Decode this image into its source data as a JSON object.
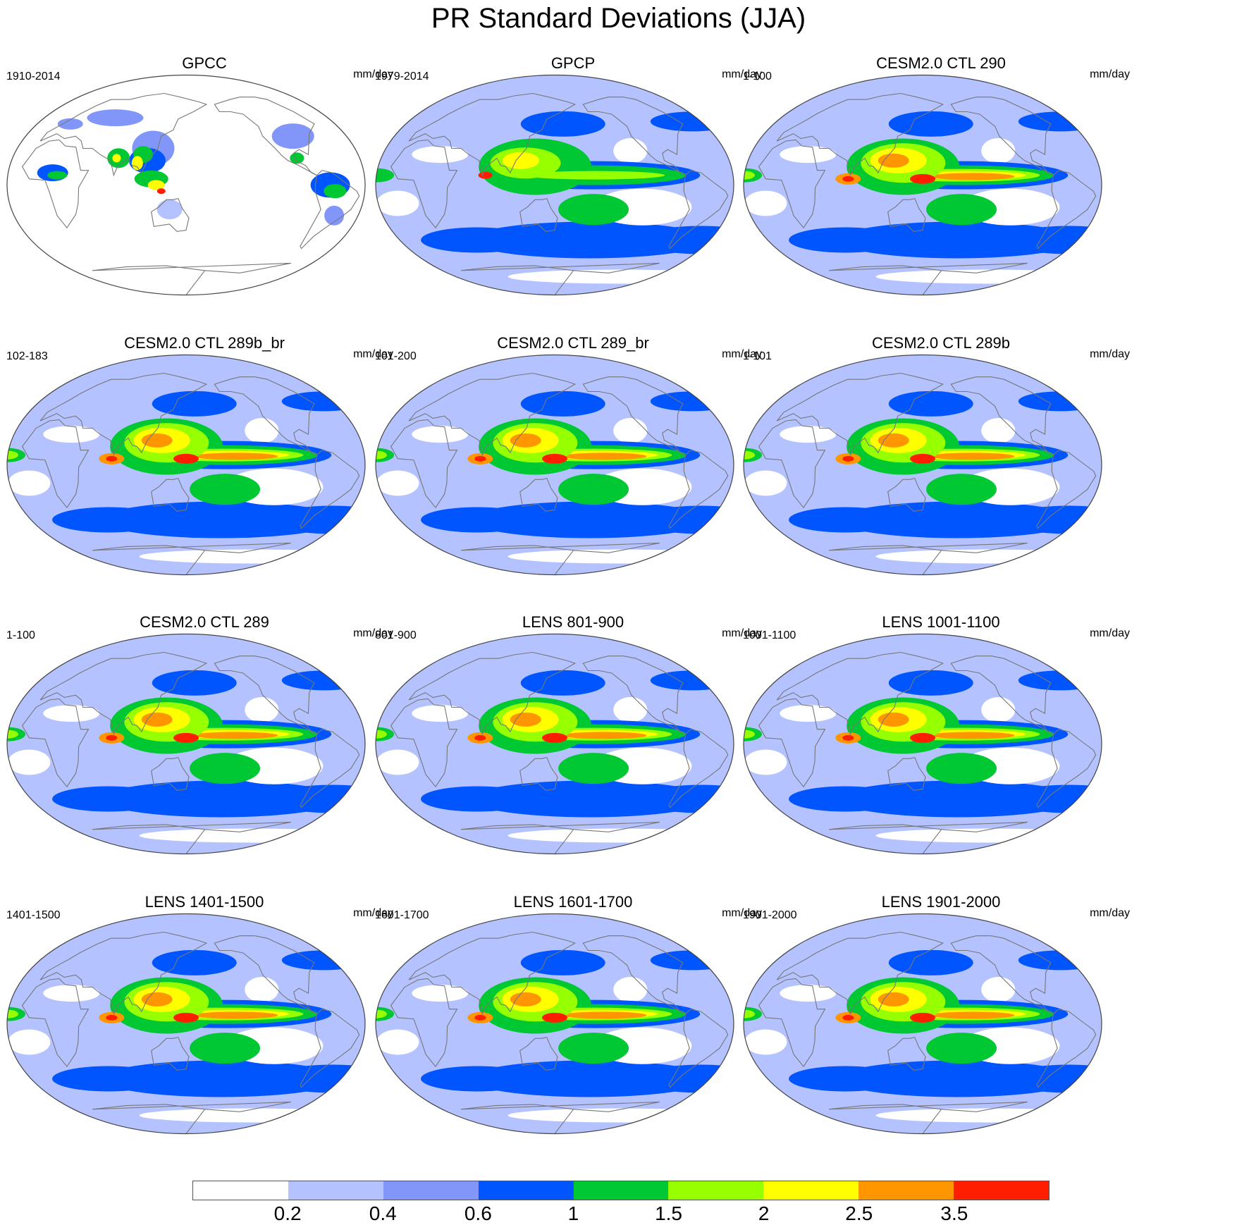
{
  "figure": {
    "title": "PR Standard Deviations (JJA)"
  },
  "panels": [
    {
      "title": "GPCC",
      "period": "1910-2014",
      "units": "mm/day",
      "style": "land_only"
    },
    {
      "title": "GPCP",
      "period": "1979-2014",
      "units": "mm/day",
      "style": "obs_global"
    },
    {
      "title": "CESM2.0 CTL 290",
      "period": "1-100",
      "units": "mm/day",
      "style": "model"
    },
    {
      "title": "CESM2.0 CTL 289b_br",
      "period": "102-183",
      "units": "mm/day",
      "style": "model"
    },
    {
      "title": "CESM2.0 CTL 289_br",
      "period": "101-200",
      "units": "mm/day",
      "style": "model"
    },
    {
      "title": "CESM2.0 CTL 289b",
      "period": "1-101",
      "units": "mm/day",
      "style": "model"
    },
    {
      "title": "CESM2.0 CTL 289",
      "period": "1-100",
      "units": "mm/day",
      "style": "model"
    },
    {
      "title": "LENS 801-900",
      "period": "801-900",
      "units": "mm/day",
      "style": "lens"
    },
    {
      "title": "LENS 1001-1100",
      "period": "1001-1100",
      "units": "mm/day",
      "style": "lens"
    },
    {
      "title": "LENS 1401-1500",
      "period": "1401-1500",
      "units": "mm/day",
      "style": "lens"
    },
    {
      "title": "LENS 1601-1700",
      "period": "1601-1700",
      "units": "mm/day",
      "style": "lens"
    },
    {
      "title": "LENS 1901-2000",
      "period": "1901-2000",
      "units": "mm/day",
      "style": "lens"
    }
  ],
  "colorbar": {
    "colors": [
      "#ffffff",
      "#b4c3ff",
      "#8296fa",
      "#0055ff",
      "#00c832",
      "#96ff00",
      "#ffff00",
      "#ff9600",
      "#ff1e00"
    ],
    "labels": [
      "0.2",
      "0.4",
      "0.6",
      "1",
      "1.5",
      "2",
      "2.5",
      "3.5"
    ]
  }
}
